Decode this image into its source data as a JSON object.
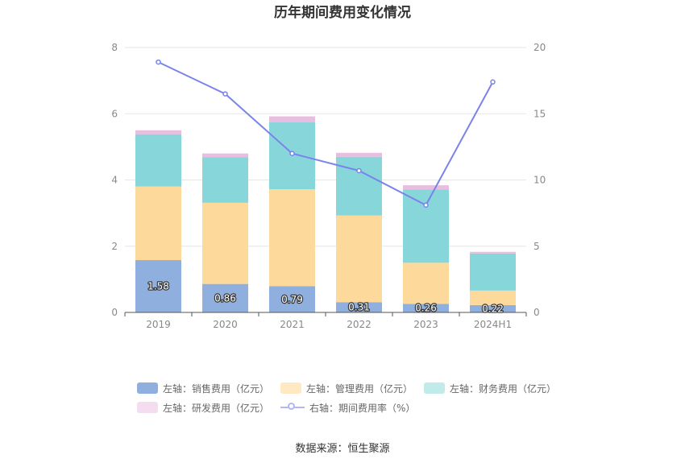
{
  "chart_data": {
    "type": "bar",
    "title": "历年期间费用变化情况",
    "categories": [
      "2019",
      "2020",
      "2021",
      "2022",
      "2023",
      "2024H1"
    ],
    "series": [
      {
        "name": "左轴：销售费用（亿元）",
        "axis": "left",
        "type": "bar",
        "color": "#8FB0DE",
        "values": [
          1.58,
          0.86,
          0.79,
          0.31,
          0.26,
          0.22
        ],
        "show_labels": true
      },
      {
        "name": "左轴：管理费用（亿元）",
        "axis": "left",
        "type": "bar",
        "color": "#FDDA9B",
        "values": [
          2.22,
          2.45,
          2.93,
          2.62,
          1.24,
          0.44
        ],
        "show_labels": false
      },
      {
        "name": "左轴：财务费用（亿元）",
        "axis": "left",
        "type": "bar",
        "color": "#87D7DA",
        "values": [
          1.58,
          1.38,
          2.02,
          1.77,
          2.21,
          1.12
        ],
        "show_labels": false
      },
      {
        "name": "左轴：研发费用（亿元）",
        "axis": "left",
        "type": "bar",
        "color": "#E8BDE0",
        "values": [
          0.12,
          0.11,
          0.18,
          0.12,
          0.13,
          0.05
        ],
        "show_labels": false
      },
      {
        "name": "右轴：期间费用率（%）",
        "axis": "right",
        "type": "line",
        "color": "#7B83EB",
        "values": [
          18.9,
          16.5,
          12.0,
          10.7,
          8.1,
          17.4
        ],
        "show_labels": false
      }
    ],
    "y_left": {
      "ylim": [
        0,
        8
      ],
      "ticks": [
        0,
        2,
        4,
        6,
        8
      ]
    },
    "y_right": {
      "ylim": [
        0,
        20
      ],
      "ticks": [
        0,
        5,
        10,
        15,
        20
      ]
    },
    "grid": true,
    "legend_position": "bottom"
  },
  "legend": {
    "row1": [
      "左轴：销售费用（亿元）",
      "左轴：管理费用（亿元）",
      "左轴：财务费用（亿元）"
    ],
    "row2": [
      "左轴：研发费用（亿元）",
      "右轴：期间费用率（%）"
    ],
    "colors": {
      "sales": "#8FB0DE",
      "admin": "#FDDA9B",
      "finance": "#C1EBEB",
      "rnd": "#F3DDEE",
      "rate": "#7B83EB"
    }
  },
  "source": "数据来源：恒生聚源"
}
